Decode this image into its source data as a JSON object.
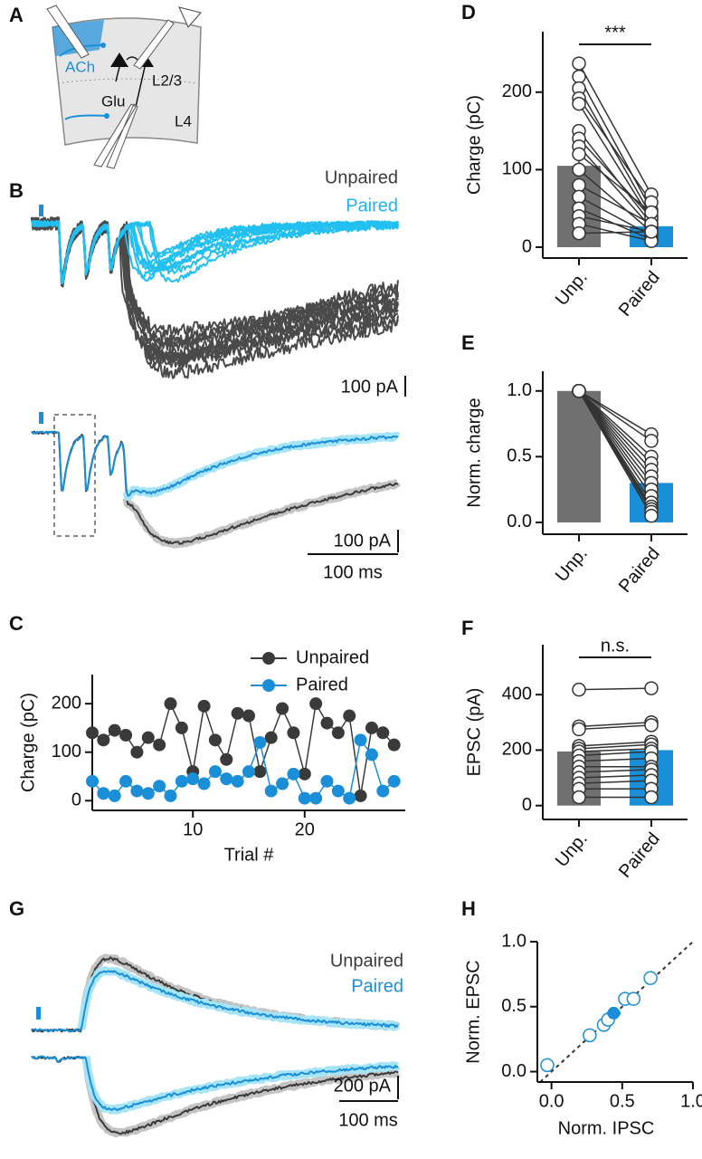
{
  "panel_labels": [
    "A",
    "B",
    "C",
    "D",
    "E",
    "F",
    "G",
    "H"
  ],
  "diagram": {
    "labels": [
      "ACh",
      "Glu",
      "L2/3",
      "L4"
    ]
  },
  "traces_b": {
    "legend": [
      "Unpaired",
      "Paired"
    ],
    "scale_bars": [
      "100 pA",
      "100 pA",
      "100 ms"
    ]
  },
  "traces_g": {
    "legend": [
      "Unpaired",
      "Paired"
    ],
    "scale_bars": [
      "200 pA",
      "100 ms"
    ]
  },
  "chart_data": [
    {
      "type": "line",
      "x_label": "Trial #",
      "y_label": "Charge (pC)",
      "x": [
        1,
        2,
        3,
        4,
        5,
        6,
        7,
        8,
        9,
        10,
        11,
        12,
        13,
        14,
        15,
        16,
        17,
        18,
        19,
        20,
        21,
        22,
        23,
        24,
        25,
        26,
        27,
        28
      ],
      "series": [
        {
          "name": "Unpaired",
          "color": "#3a3a3a",
          "values": [
            140,
            125,
            145,
            135,
            100,
            130,
            115,
            200,
            150,
            60,
            195,
            125,
            85,
            180,
            175,
            60,
            130,
            190,
            140,
            55,
            200,
            160,
            140,
            175,
            10,
            150,
            140,
            115
          ]
        },
        {
          "name": "Paired",
          "color": "#1a8fd8",
          "values": [
            40,
            15,
            10,
            40,
            20,
            15,
            30,
            10,
            40,
            45,
            35,
            60,
            45,
            40,
            60,
            120,
            20,
            35,
            55,
            5,
            5,
            40,
            20,
            5,
            125,
            95,
            20,
            40
          ]
        }
      ],
      "xlim": [
        1,
        29
      ],
      "xticks": [
        10,
        20
      ],
      "ylim": [
        -20,
        260
      ],
      "yticks": [
        0,
        100,
        200
      ],
      "legend": "top-right"
    },
    {
      "type": "paired_bar",
      "y_label": "Charge (pC)",
      "annotation": "***",
      "categories": [
        "Unp.",
        "Paired"
      ],
      "values": [
        105,
        27
      ],
      "errors": [
        15,
        5
      ],
      "colors": [
        "#707070",
        "#1a8fd8"
      ],
      "pairs": [
        [
          237,
          68
        ],
        [
          220,
          48
        ],
        [
          205,
          40
        ],
        [
          192,
          58
        ],
        [
          185,
          35
        ],
        [
          150,
          30
        ],
        [
          140,
          38
        ],
        [
          130,
          25
        ],
        [
          120,
          45
        ],
        [
          100,
          20
        ],
        [
          80,
          30
        ],
        [
          65,
          15
        ],
        [
          50,
          10
        ],
        [
          40,
          20
        ],
        [
          30,
          8
        ],
        [
          18,
          20
        ]
      ],
      "ylim": [
        -14,
        278
      ],
      "yticks": [
        0,
        100,
        200
      ]
    },
    {
      "type": "paired_bar",
      "y_label": "Norm. charge",
      "categories": [
        "Unp.",
        "Paired"
      ],
      "values": [
        1.0,
        0.3
      ],
      "colors": [
        "#707070",
        "#1a8fd8"
      ],
      "pairs": [
        [
          1,
          0.67
        ],
        [
          1,
          0.62
        ],
        [
          1,
          0.5
        ],
        [
          1,
          0.45
        ],
        [
          1,
          0.4
        ],
        [
          1,
          0.35
        ],
        [
          1,
          0.3
        ],
        [
          1,
          0.25
        ],
        [
          1,
          0.2
        ],
        [
          1,
          0.15
        ],
        [
          1,
          0.12
        ],
        [
          1,
          0.1
        ],
        [
          1,
          0.08
        ],
        [
          1,
          0.05
        ]
      ],
      "ylim": [
        -0.09,
        1.15
      ],
      "yticks": [
        {
          "value": 0,
          "label": "0.0"
        },
        {
          "value": 0.5,
          "label": "0.5"
        },
        {
          "value": 1,
          "label": "1.0"
        }
      ]
    },
    {
      "type": "paired_bar",
      "y_label": "EPSC (pA)",
      "annotation": "n.s.",
      "categories": [
        "Unp.",
        "Paired"
      ],
      "values": [
        195,
        200
      ],
      "colors": [
        "#707070",
        "#1a8fd8"
      ],
      "pairs": [
        [
          418,
          423
        ],
        [
          285,
          300
        ],
        [
          275,
          290
        ],
        [
          215,
          230
        ],
        [
          205,
          220
        ],
        [
          195,
          205
        ],
        [
          180,
          195
        ],
        [
          160,
          170
        ],
        [
          140,
          140
        ],
        [
          120,
          130
        ],
        [
          100,
          110
        ],
        [
          80,
          90
        ],
        [
          60,
          60
        ],
        [
          30,
          30
        ]
      ],
      "ylim": [
        -50,
        580
      ],
      "yticks": [
        0,
        200,
        400
      ]
    },
    {
      "type": "scatter",
      "x_label": "Norm. IPSC",
      "y_label": "Norm. EPSC",
      "color": "#1a8fd8",
      "x": [
        -0.03,
        0.27,
        0.37,
        0.4,
        0.52,
        0.58,
        0.7
      ],
      "y": [
        0.05,
        0.28,
        0.36,
        0.4,
        0.56,
        0.56,
        0.72
      ],
      "mean": {
        "x": 0.44,
        "y": 0.45,
        "xerr": 0.05,
        "yerr": 0.04
      },
      "unity_line": true,
      "xlim": [
        -0.1,
        1.0
      ],
      "ylim": [
        -0.08,
        1.0
      ],
      "xticks": [
        {
          "value": 0,
          "label": "0.0"
        },
        {
          "value": 0.5,
          "label": "0.5"
        },
        {
          "value": 1,
          "label": "1.0"
        }
      ],
      "yticks": [
        {
          "value": 0,
          "label": "0.0"
        },
        {
          "value": 0.5,
          "label": "0.5"
        },
        {
          "value": 1,
          "label": "1.0"
        }
      ]
    }
  ]
}
